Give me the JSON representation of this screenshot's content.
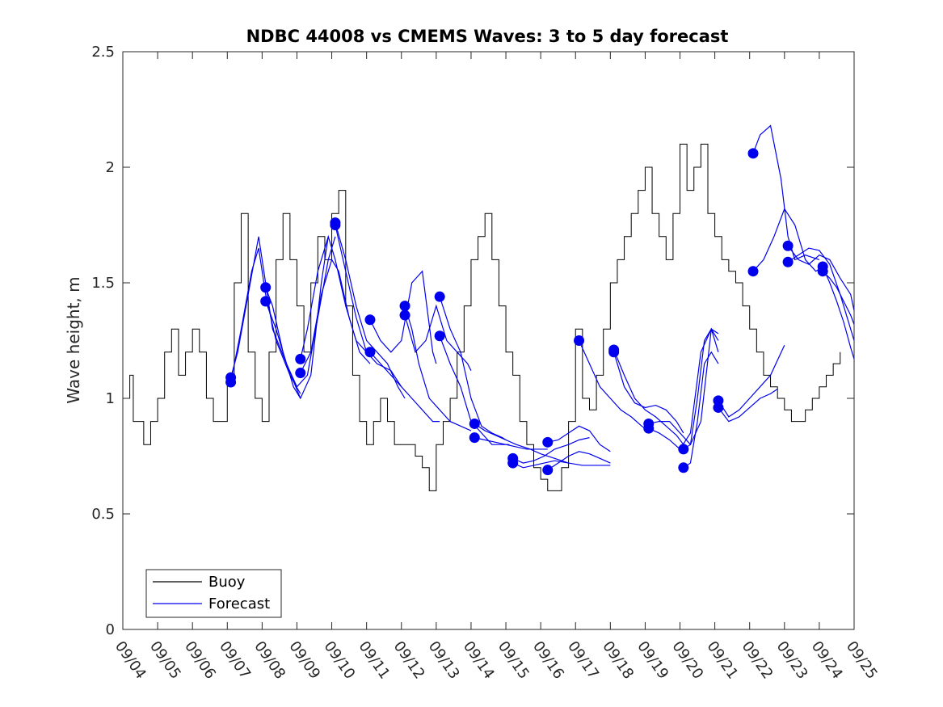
{
  "chart_data": {
    "type": "line",
    "title": "NDBC 44008 vs CMEMS Waves: 3 to 5 day forecast",
    "xlabel": "",
    "ylabel": "Wave height, m",
    "xlim": [
      0,
      21
    ],
    "ylim": [
      0,
      2.5
    ],
    "x_tick_labels": [
      "09/04",
      "09/05",
      "09/06",
      "09/07",
      "09/08",
      "09/09",
      "09/10",
      "09/11",
      "09/12",
      "09/13",
      "09/14",
      "09/15",
      "09/16",
      "09/17",
      "09/18",
      "09/19",
      "09/20",
      "09/21",
      "09/22",
      "09/23",
      "09/24",
      "09/25"
    ],
    "y_ticks": [
      0,
      0.5,
      1,
      1.5,
      2,
      2.5
    ],
    "y_tick_labels": [
      "0",
      "0.5",
      "1",
      "1.5",
      "2",
      "2.5"
    ],
    "legend": {
      "placement": "bottom-left",
      "entries": [
        "Buoy",
        "Forecast"
      ]
    },
    "colors": {
      "buoy": "#000000",
      "forecast": "#0000ee"
    },
    "buoy_color_name": "black",
    "series": [
      {
        "name": "Buoy",
        "x_days": [
          0,
          0.2,
          0.3,
          0.6,
          0.8,
          1,
          1.2,
          1.4,
          1.6,
          1.8,
          2,
          2.2,
          2.4,
          2.6,
          3,
          3.2,
          3.4,
          3.6,
          3.8,
          4,
          4.2,
          4.4,
          4.6,
          4.8,
          5,
          5.2,
          5.4,
          5.6,
          5.8,
          6,
          6.2,
          6.4,
          6.6,
          6.8,
          7,
          7.2,
          7.4,
          7.6,
          7.8,
          8,
          8.2,
          8.4,
          8.6,
          8.8,
          9,
          9.2,
          9.4,
          9.6,
          9.8,
          10,
          10.2,
          10.4,
          10.6,
          10.8,
          11,
          11.2,
          11.4,
          11.6,
          11.8,
          12,
          12.2,
          12.4,
          12.6,
          12.8,
          13,
          13.2,
          13.4,
          13.6,
          13.8,
          14,
          14.2,
          14.4,
          14.6,
          14.8,
          15,
          15.2,
          15.4,
          15.6,
          15.8,
          16,
          16.2,
          16.4,
          16.6,
          16.8,
          17,
          17.2,
          17.4,
          17.6,
          17.8,
          18,
          18.2,
          18.4,
          18.6,
          18.8,
          19,
          19.2,
          19.4,
          19.6,
          19.8,
          20,
          20.2,
          20.4,
          20.6
        ],
        "values": [
          1.0,
          1.1,
          0.9,
          0.8,
          0.9,
          1.0,
          1.2,
          1.3,
          1.1,
          1.2,
          1.3,
          1.2,
          1.0,
          0.9,
          1.1,
          1.5,
          1.8,
          1.2,
          1.0,
          0.9,
          1.2,
          1.6,
          1.8,
          1.6,
          1.4,
          1.2,
          1.5,
          1.7,
          1.6,
          1.8,
          1.9,
          1.4,
          1.1,
          0.9,
          0.8,
          0.9,
          1.0,
          0.9,
          0.8,
          0.8,
          0.8,
          0.75,
          0.7,
          0.6,
          0.8,
          0.9,
          1.0,
          1.2,
          1.4,
          1.6,
          1.7,
          1.8,
          1.6,
          1.4,
          1.2,
          1.1,
          0.9,
          0.8,
          0.7,
          0.65,
          0.6,
          0.6,
          0.7,
          0.9,
          1.3,
          1.0,
          0.95,
          1.1,
          1.3,
          1.5,
          1.6,
          1.7,
          1.8,
          1.9,
          2.0,
          1.8,
          1.7,
          1.6,
          1.8,
          2.1,
          1.9,
          2.0,
          2.1,
          1.8,
          1.7,
          1.6,
          1.55,
          1.5,
          1.4,
          1.3,
          1.2,
          1.1,
          1.05,
          1.0,
          0.95,
          0.9,
          0.9,
          0.95,
          1.0,
          1.05,
          1.1,
          1.15,
          1.2
        ]
      }
    ],
    "forecast_series": [
      {
        "name": "Forecast",
        "x_days": [
          3.1,
          3.3,
          3.6,
          3.9,
          4.1,
          4.3,
          4.7,
          5.1
        ],
        "values": [
          1.09,
          1.2,
          1.45,
          1.7,
          1.5,
          1.3,
          1.15,
          1.0
        ]
      },
      {
        "name": "Forecast",
        "x_days": [
          3.1,
          3.4,
          3.7,
          3.9,
          4.1,
          4.4,
          4.8,
          5.1
        ],
        "values": [
          1.07,
          1.3,
          1.55,
          1.65,
          1.45,
          1.25,
          1.1,
          1.02
        ]
      },
      {
        "name": "Forecast",
        "x_days": [
          4.1,
          4.3,
          4.6,
          4.9,
          5.1,
          5.4,
          5.7,
          5.9
        ],
        "values": [
          1.48,
          1.4,
          1.2,
          1.05,
          1.0,
          1.1,
          1.5,
          1.7
        ]
      },
      {
        "name": "Forecast",
        "x_days": [
          4.1,
          4.4,
          4.7,
          5.0,
          5.3,
          5.6,
          5.9,
          6.1
        ],
        "values": [
          1.42,
          1.3,
          1.15,
          1.05,
          1.1,
          1.35,
          1.6,
          1.7
        ]
      },
      {
        "name": "Forecast",
        "x_days": [
          5.1,
          5.3,
          5.6,
          5.9,
          6.1,
          6.4,
          6.7,
          7.0
        ],
        "values": [
          1.17,
          1.3,
          1.55,
          1.7,
          1.6,
          1.4,
          1.25,
          1.2
        ]
      },
      {
        "name": "Forecast",
        "x_days": [
          5.1,
          5.4,
          5.7,
          6.0,
          6.2,
          6.5,
          6.8,
          7.1
        ],
        "values": [
          1.11,
          1.2,
          1.45,
          1.6,
          1.55,
          1.35,
          1.2,
          1.15
        ]
      },
      {
        "name": "Forecast",
        "x_days": [
          6.1,
          6.4,
          6.7,
          7.0,
          7.3,
          7.6,
          7.9,
          8.1
        ],
        "values": [
          1.76,
          1.6,
          1.4,
          1.25,
          1.2,
          1.15,
          1.05,
          1.0
        ]
      },
      {
        "name": "Forecast",
        "x_days": [
          6.1,
          6.4,
          6.7,
          7.0,
          7.3,
          7.7,
          8.0
        ],
        "values": [
          1.75,
          1.55,
          1.35,
          1.2,
          1.15,
          1.12,
          1.05
        ]
      },
      {
        "name": "Forecast",
        "x_days": [
          7.1,
          7.4,
          7.7,
          8.0,
          8.3,
          8.6,
          8.9,
          9.0
        ],
        "values": [
          1.34,
          1.25,
          1.2,
          1.25,
          1.5,
          1.55,
          1.2,
          1.15
        ]
      },
      {
        "name": "Forecast",
        "x_days": [
          7.1,
          7.4,
          7.7,
          8.0,
          8.3,
          8.6,
          8.9,
          9.1
        ],
        "values": [
          1.2,
          1.15,
          1.1,
          1.05,
          1.0,
          0.95,
          0.9,
          0.9
        ]
      },
      {
        "name": "Forecast",
        "x_days": [
          8.1,
          8.3,
          8.5,
          8.8,
          9.1,
          9.4,
          9.7,
          10.0
        ],
        "values": [
          1.4,
          1.3,
          1.15,
          1.0,
          0.95,
          0.9,
          0.88,
          0.86
        ]
      },
      {
        "name": "Forecast",
        "x_days": [
          8.1,
          8.4,
          8.7,
          9.0,
          9.3,
          9.6,
          9.9,
          10.0
        ],
        "values": [
          1.36,
          1.2,
          1.25,
          1.4,
          1.25,
          1.2,
          1.15,
          1.12
        ]
      },
      {
        "name": "Forecast",
        "x_days": [
          9.1,
          9.4,
          9.7,
          10.0,
          10.3,
          10.6,
          10.9,
          11.0
        ],
        "values": [
          1.44,
          1.3,
          1.2,
          1.0,
          0.88,
          0.85,
          0.83,
          0.82
        ]
      },
      {
        "name": "Forecast",
        "x_days": [
          9.1,
          9.4,
          9.7,
          10.0,
          10.3,
          10.6,
          10.9,
          11.1
        ],
        "values": [
          1.27,
          1.15,
          1.05,
          0.9,
          0.85,
          0.8,
          0.8,
          0.8
        ]
      },
      {
        "name": "Forecast",
        "x_days": [
          10.1,
          10.4,
          10.7,
          11.0,
          11.3,
          11.7,
          12.0,
          12.4,
          12.8
        ],
        "values": [
          0.89,
          0.86,
          0.84,
          0.82,
          0.8,
          0.78,
          0.76,
          0.74,
          0.72
        ]
      },
      {
        "name": "Forecast",
        "x_days": [
          10.1,
          10.4,
          10.7,
          11.0,
          11.3,
          11.6,
          11.9,
          12.2
        ],
        "values": [
          0.83,
          0.82,
          0.81,
          0.8,
          0.79,
          0.78,
          0.78,
          0.78
        ]
      },
      {
        "name": "Forecast",
        "x_days": [
          11.2,
          11.5,
          11.8,
          12.1,
          12.4,
          12.8,
          13.1,
          13.4
        ],
        "values": [
          0.74,
          0.72,
          0.73,
          0.75,
          0.78,
          0.8,
          0.82,
          0.83
        ]
      },
      {
        "name": "Forecast",
        "x_days": [
          11.2,
          11.5,
          11.8,
          12.1,
          12.4,
          12.8,
          13.2,
          13.6,
          14.0
        ],
        "values": [
          0.72,
          0.7,
          0.71,
          0.72,
          0.73,
          0.72,
          0.71,
          0.71,
          0.71
        ]
      },
      {
        "name": "Forecast",
        "x_days": [
          12.2,
          12.5,
          12.8,
          13.1,
          13.4,
          13.7,
          14.0
        ],
        "values": [
          0.81,
          0.82,
          0.85,
          0.88,
          0.86,
          0.8,
          0.77
        ]
      },
      {
        "name": "Forecast",
        "x_days": [
          12.2,
          12.5,
          12.8,
          13.1,
          13.4,
          13.7,
          14.0
        ],
        "values": [
          0.69,
          0.72,
          0.75,
          0.77,
          0.76,
          0.74,
          0.72
        ]
      },
      {
        "name": "Forecast",
        "x_days": [
          13.1,
          13.4,
          13.7,
          14.0,
          14.3,
          14.6,
          14.9,
          15.1
        ],
        "values": [
          1.25,
          1.15,
          1.05,
          1.0,
          0.95,
          0.92,
          0.88,
          0.86
        ]
      },
      {
        "name": "Forecast",
        "x_days": [
          14.1,
          14.4,
          14.7,
          15.0,
          15.3,
          15.6,
          15.9,
          16.1
        ],
        "values": [
          1.21,
          1.1,
          1.0,
          0.95,
          0.92,
          0.88,
          0.84,
          0.8
        ]
      },
      {
        "name": "Forecast",
        "x_days": [
          14.1,
          14.4,
          14.7,
          15.0,
          15.3,
          15.6,
          15.9,
          16.1
        ],
        "values": [
          1.2,
          1.05,
          0.98,
          0.96,
          0.97,
          0.95,
          0.9,
          0.85
        ]
      },
      {
        "name": "Forecast",
        "x_days": [
          15.1,
          15.4,
          15.7,
          16.0,
          16.3,
          16.6,
          16.9,
          17.1
        ],
        "values": [
          0.89,
          0.9,
          0.9,
          0.85,
          0.8,
          0.9,
          1.3,
          1.28
        ]
      },
      {
        "name": "Forecast",
        "x_days": [
          15.1,
          15.4,
          15.7,
          16.0,
          16.3,
          16.6,
          16.9,
          17.1
        ],
        "values": [
          0.87,
          0.85,
          0.82,
          0.78,
          0.85,
          1.2,
          1.3,
          1.2
        ]
      },
      {
        "name": "Forecast",
        "x_days": [
          16.1,
          16.3,
          16.5,
          16.7,
          16.9,
          17.1
        ],
        "values": [
          0.78,
          0.8,
          1.0,
          1.25,
          1.3,
          1.25
        ]
      },
      {
        "name": "Forecast",
        "x_days": [
          16.1,
          16.3,
          16.5,
          16.7,
          16.9,
          17.1
        ],
        "values": [
          0.7,
          0.72,
          0.9,
          1.15,
          1.2,
          1.15
        ]
      },
      {
        "name": "Forecast",
        "x_days": [
          17.1,
          17.4,
          17.7,
          18.0,
          18.3,
          18.6,
          19.0
        ],
        "values": [
          0.99,
          0.92,
          0.95,
          1.0,
          1.05,
          1.1,
          1.23
        ]
      },
      {
        "name": "Forecast",
        "x_days": [
          17.1,
          17.4,
          17.7,
          18.0,
          18.3,
          18.6,
          18.8
        ],
        "values": [
          0.96,
          0.9,
          0.92,
          0.96,
          1.0,
          1.02,
          1.04
        ]
      },
      {
        "name": "Forecast",
        "x_days": [
          18.1,
          18.3,
          18.6,
          18.9,
          19.1,
          19.3,
          19.6,
          20.0
        ],
        "values": [
          2.06,
          2.14,
          2.18,
          1.95,
          1.7,
          1.6,
          1.62,
          1.6
        ]
      },
      {
        "name": "Forecast",
        "x_days": [
          18.1,
          18.4,
          18.7,
          19.0,
          19.3,
          19.6,
          19.9,
          20.2
        ],
        "values": [
          1.55,
          1.6,
          1.7,
          1.82,
          1.75,
          1.6,
          1.55,
          1.58
        ]
      },
      {
        "name": "Forecast",
        "x_days": [
          19.1,
          19.4,
          19.7,
          20.0,
          20.3,
          20.6,
          20.9,
          21.0
        ],
        "values": [
          1.66,
          1.6,
          1.58,
          1.62,
          1.6,
          1.52,
          1.45,
          1.38
        ]
      },
      {
        "name": "Forecast",
        "x_days": [
          19.1,
          19.4,
          19.7,
          20.0,
          20.3,
          20.6,
          20.9,
          21.0
        ],
        "values": [
          1.59,
          1.62,
          1.65,
          1.64,
          1.58,
          1.45,
          1.3,
          1.25
        ]
      },
      {
        "name": "Forecast",
        "x_days": [
          20.1,
          20.3,
          20.5,
          20.7,
          20.9,
          21.0
        ],
        "values": [
          1.57,
          1.5,
          1.42,
          1.33,
          1.22,
          1.17
        ]
      },
      {
        "name": "Forecast",
        "x_days": [
          20.1,
          20.3,
          20.5,
          20.7,
          20.9,
          21.0
        ],
        "values": [
          1.55,
          1.52,
          1.48,
          1.42,
          1.36,
          1.32
        ]
      }
    ]
  }
}
